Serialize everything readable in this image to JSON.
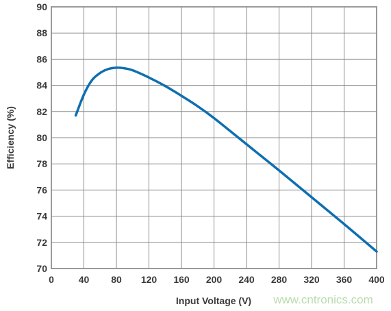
{
  "chart_data": {
    "type": "line",
    "xlabel": "Input Voltage (V)",
    "ylabel": "Efficiency (%)",
    "xlim": [
      0,
      400
    ],
    "ylim": [
      70,
      90
    ],
    "x_ticks": [
      "0",
      "40",
      "80",
      "120",
      "160",
      "200",
      "240",
      "280",
      "320",
      "360",
      "400"
    ],
    "y_ticks": [
      "70",
      "72",
      "74",
      "76",
      "78",
      "80",
      "82",
      "84",
      "86",
      "88",
      "90"
    ],
    "grid": true,
    "series": [
      {
        "color": "#0e6fb0",
        "x": [
          30,
          40,
          50,
          60,
          70,
          80,
          90,
          100,
          120,
          140,
          160,
          180,
          200,
          240,
          280,
          320,
          360,
          400
        ],
        "y": [
          81.7,
          83.3,
          84.4,
          84.95,
          85.25,
          85.35,
          85.3,
          85.15,
          84.6,
          83.95,
          83.2,
          82.4,
          81.5,
          79.5,
          77.5,
          75.45,
          73.4,
          71.3
        ]
      }
    ]
  },
  "watermark": "www.cntronics.com"
}
